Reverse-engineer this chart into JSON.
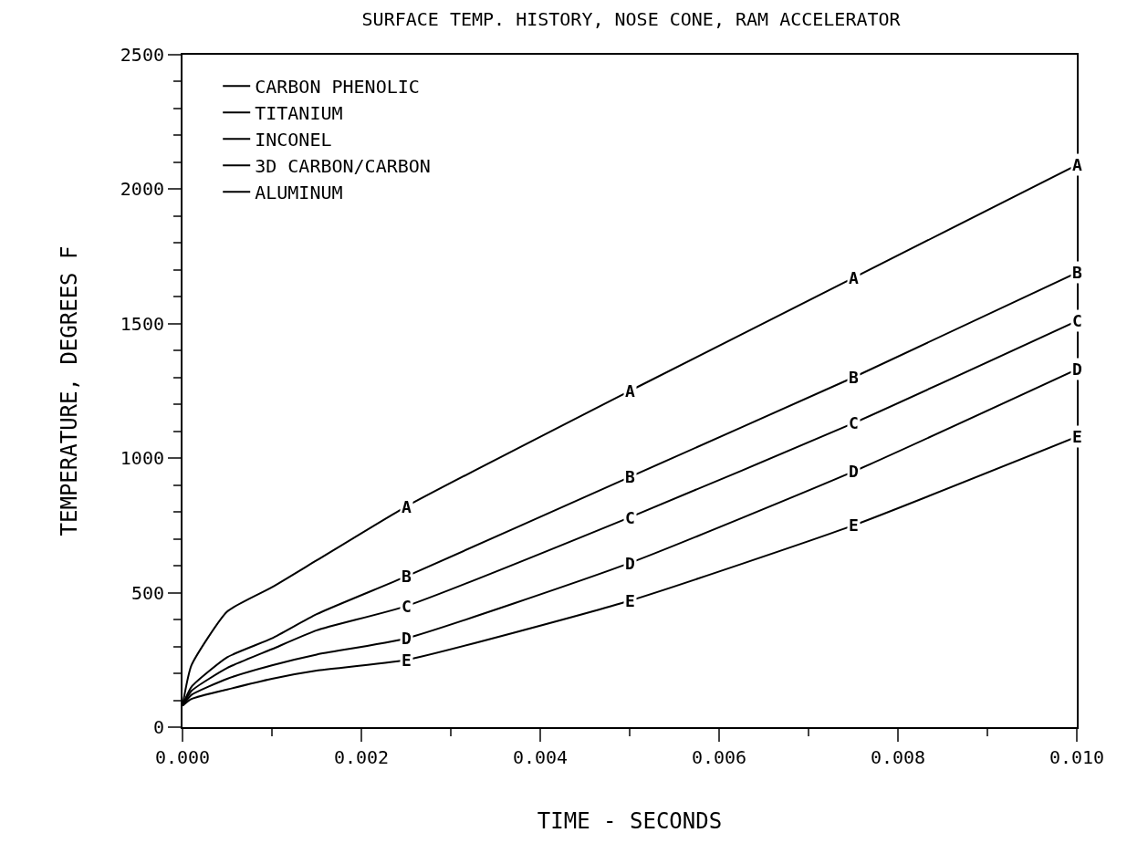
{
  "chart_data": {
    "type": "line",
    "title": "SURFACE TEMP. HISTORY, NOSE CONE, RAM ACCELERATOR",
    "xlabel": "TIME - SECONDS",
    "ylabel": "TEMPERATURE, DEGREES F",
    "x": [
      0,
      0.0001,
      0.0005,
      0.001,
      0.0015,
      0.0025,
      0.005,
      0.0075,
      0.01
    ],
    "series": [
      {
        "name": "CARBON PHENOLIC",
        "color": "#000000",
        "values": [
          80,
          230,
          430,
          520,
          620,
          820,
          1250,
          1670,
          2090
        ]
      },
      {
        "name": "TITANIUM",
        "color": "#000000",
        "values": [
          80,
          150,
          260,
          330,
          420,
          560,
          930,
          1300,
          1690
        ]
      },
      {
        "name": "INCONEL",
        "color": "#000000",
        "values": [
          80,
          135,
          220,
          290,
          360,
          450,
          780,
          1130,
          1510
        ]
      },
      {
        "name": "3D CARBON/CARBON",
        "color": "#000000",
        "values": [
          80,
          120,
          180,
          230,
          270,
          330,
          610,
          950,
          1330
        ]
      },
      {
        "name": "ALUMINUM",
        "color": "#000000",
        "values": [
          80,
          105,
          140,
          180,
          210,
          250,
          470,
          750,
          1080
        ]
      }
    ],
    "annotations": [
      {
        "text": "A",
        "x": 0.0025,
        "y": 820
      },
      {
        "text": "A",
        "x": 0.005,
        "y": 1250
      },
      {
        "text": "A",
        "x": 0.0075,
        "y": 1670
      },
      {
        "text": "A",
        "x": 0.01,
        "y": 2090
      },
      {
        "text": "B",
        "x": 0.0025,
        "y": 560
      },
      {
        "text": "B",
        "x": 0.005,
        "y": 930
      },
      {
        "text": "B",
        "x": 0.0075,
        "y": 1300
      },
      {
        "text": "B",
        "x": 0.01,
        "y": 1690
      },
      {
        "text": "C",
        "x": 0.0025,
        "y": 450
      },
      {
        "text": "C",
        "x": 0.005,
        "y": 780
      },
      {
        "text": "C",
        "x": 0.0075,
        "y": 1130
      },
      {
        "text": "C",
        "x": 0.01,
        "y": 1510
      },
      {
        "text": "D",
        "x": 0.0025,
        "y": 330
      },
      {
        "text": "D",
        "x": 0.005,
        "y": 610
      },
      {
        "text": "D",
        "x": 0.0075,
        "y": 950
      },
      {
        "text": "D",
        "x": 0.01,
        "y": 1330
      },
      {
        "text": "E",
        "x": 0.0025,
        "y": 250
      },
      {
        "text": "E",
        "x": 0.005,
        "y": 470
      },
      {
        "text": "E",
        "x": 0.0075,
        "y": 750
      },
      {
        "text": "E",
        "x": 0.01,
        "y": 1080
      }
    ],
    "xlim": [
      0,
      0.01
    ],
    "ylim": [
      0,
      2500
    ],
    "xticks": [
      {
        "value": 0,
        "label": "0.000"
      },
      {
        "value": 0.002,
        "label": "0.002"
      },
      {
        "value": 0.004,
        "label": "0.004"
      },
      {
        "value": 0.006,
        "label": "0.006"
      },
      {
        "value": 0.008,
        "label": "0.008"
      },
      {
        "value": 0.01,
        "label": "0.010"
      }
    ],
    "yticks": [
      0,
      500,
      1000,
      1500,
      2000,
      2500
    ],
    "legend": "top left",
    "marker": "none",
    "line_style": "solid"
  }
}
